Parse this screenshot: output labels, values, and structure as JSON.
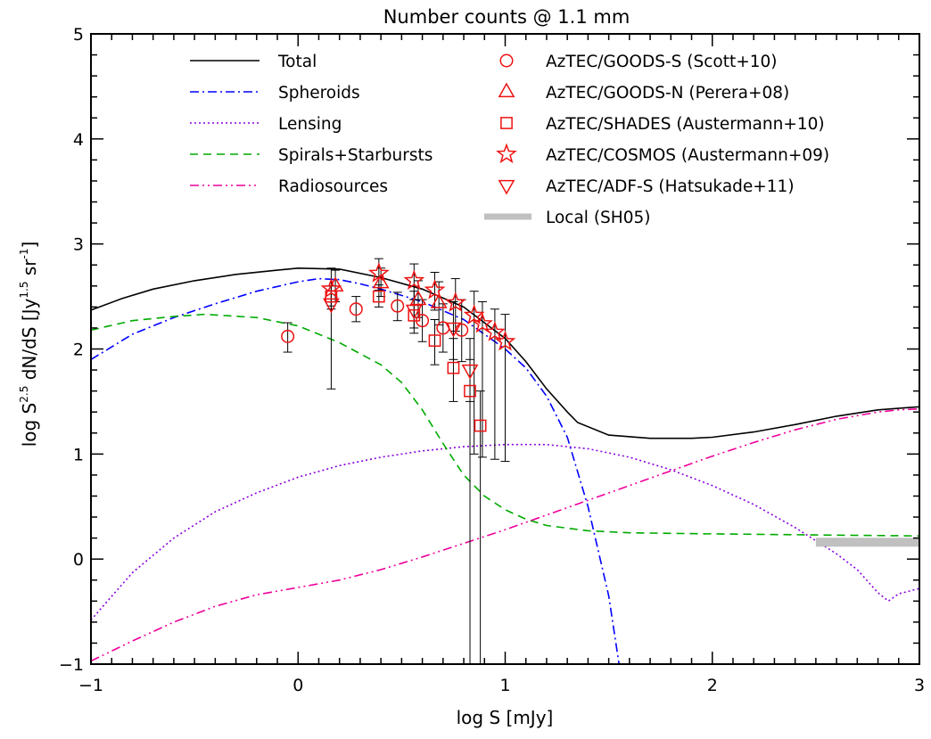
{
  "chart_data": {
    "type": "line",
    "title": "Number counts @ 1.1 mm",
    "xlabel": {
      "pre": "log S [mJy]"
    },
    "ylabel": {
      "pre": "log S",
      "sup1": "2.5",
      "mid": " dN/dS [Jy",
      "sup2": "1.5",
      "mid2": " sr",
      "sup3": "-1",
      "post": "]"
    },
    "xlim": [
      -1,
      3
    ],
    "ylim": [
      -1,
      5
    ],
    "xticks": [
      -1,
      0,
      1,
      2,
      3
    ],
    "yticks": [
      -1,
      0,
      1,
      2,
      3,
      4,
      5
    ],
    "series": [
      {
        "name": "Total",
        "color": "#000000",
        "dash": "solid",
        "x": [
          -1,
          -0.85,
          -0.7,
          -0.5,
          -0.3,
          -0.1,
          0,
          0.2,
          0.4,
          0.6,
          0.8,
          1.0,
          1.1,
          1.2,
          1.3,
          1.35,
          1.5,
          1.7,
          1.9,
          2.0,
          2.2,
          2.4,
          2.6,
          2.8,
          3.0
        ],
        "y": [
          2.37,
          2.48,
          2.57,
          2.65,
          2.71,
          2.75,
          2.77,
          2.76,
          2.68,
          2.57,
          2.4,
          2.1,
          1.88,
          1.62,
          1.4,
          1.3,
          1.18,
          1.15,
          1.15,
          1.16,
          1.21,
          1.28,
          1.36,
          1.42,
          1.45
        ]
      },
      {
        "name": "Spheroids",
        "color": "#0000ff",
        "dash": "dashdot",
        "x": [
          -1,
          -0.8,
          -0.6,
          -0.4,
          -0.2,
          0,
          0.1,
          0.2,
          0.3,
          0.4,
          0.6,
          0.8,
          1.0,
          1.1,
          1.2,
          1.3,
          1.4,
          1.5,
          1.55
        ],
        "y": [
          1.9,
          2.14,
          2.3,
          2.43,
          2.55,
          2.64,
          2.67,
          2.66,
          2.62,
          2.57,
          2.45,
          2.28,
          2.0,
          1.82,
          1.55,
          1.16,
          0.5,
          -0.35,
          -1.0
        ]
      },
      {
        "name": "Lensing",
        "color": "#8800dd",
        "dash": "dotted",
        "x": [
          -1,
          -0.8,
          -0.6,
          -0.4,
          -0.2,
          0,
          0.2,
          0.4,
          0.6,
          0.8,
          1.0,
          1.2,
          1.4,
          1.6,
          1.8,
          2.0,
          2.2,
          2.4,
          2.6,
          2.7,
          2.8,
          2.85,
          2.9,
          3.0
        ],
        "y": [
          -0.58,
          -0.13,
          0.2,
          0.45,
          0.63,
          0.78,
          0.89,
          0.97,
          1.03,
          1.07,
          1.09,
          1.09,
          1.05,
          0.97,
          0.85,
          0.7,
          0.52,
          0.3,
          0.05,
          -0.1,
          -0.32,
          -0.4,
          -0.33,
          -0.28
        ]
      },
      {
        "name": "Spirals+Starbursts",
        "color": "#00aa00",
        "dash": "dashed",
        "x": [
          -1,
          -0.8,
          -0.6,
          -0.45,
          -0.2,
          0,
          0.2,
          0.4,
          0.5,
          0.6,
          0.7,
          0.8,
          0.9,
          1.0,
          1.1,
          1.2,
          1.4,
          1.6,
          2.0,
          2.5,
          3.0
        ],
        "y": [
          2.18,
          2.27,
          2.31,
          2.33,
          2.3,
          2.22,
          2.06,
          1.85,
          1.68,
          1.42,
          1.1,
          0.8,
          0.6,
          0.47,
          0.38,
          0.32,
          0.27,
          0.25,
          0.24,
          0.23,
          0.22
        ]
      },
      {
        "name": "Radiosources",
        "color": "#ee0099",
        "dash": "dashdotdot",
        "x": [
          -1,
          -0.8,
          -0.6,
          -0.4,
          -0.2,
          0,
          0.2,
          0.4,
          0.6,
          0.8,
          1.0,
          1.2,
          1.4,
          1.6,
          1.8,
          2.0,
          2.2,
          2.4,
          2.6,
          2.8,
          2.9,
          3.0
        ],
        "y": [
          -0.97,
          -0.78,
          -0.6,
          -0.45,
          -0.34,
          -0.27,
          -0.2,
          -0.1,
          0.02,
          0.15,
          0.28,
          0.42,
          0.56,
          0.7,
          0.84,
          0.98,
          1.11,
          1.23,
          1.33,
          1.4,
          1.42,
          1.43
        ]
      },
      {
        "name": "Local (SH05)",
        "color": "#c0c0c0",
        "dash": "thick",
        "x": [
          2.5,
          3.0
        ],
        "y": [
          0.16,
          0.16
        ]
      }
    ],
    "observations": [
      {
        "name": "AzTEC/GOODS-S (Scott+10)",
        "marker": "circle",
        "points": [
          {
            "x": -0.05,
            "y": 2.12,
            "lo": 1.97,
            "hi": 2.25
          },
          {
            "x": 0.28,
            "y": 2.38,
            "lo": 2.26,
            "hi": 2.5
          },
          {
            "x": 0.48,
            "y": 2.41,
            "lo": 2.27,
            "hi": 2.54
          },
          {
            "x": 0.6,
            "y": 2.27,
            "lo": 2.07,
            "hi": 2.47
          },
          {
            "x": 0.7,
            "y": 2.2,
            "lo": 1.97,
            "hi": 2.43
          },
          {
            "x": 0.79,
            "y": 2.18,
            "lo": 1.88,
            "hi": 2.47
          }
        ]
      },
      {
        "name": "AzTEC/GOODS-N (Perera+08)",
        "marker": "triangle",
        "points": [
          {
            "x": 0.18,
            "y": 2.6,
            "lo": 2.45,
            "hi": 2.75
          },
          {
            "x": 0.4,
            "y": 2.63,
            "lo": 2.5,
            "hi": 2.77
          },
          {
            "x": 0.58,
            "y": 2.47,
            "lo": 2.3,
            "hi": 2.65
          },
          {
            "x": 0.68,
            "y": 2.44,
            "lo": 2.23,
            "hi": 2.64
          }
        ]
      },
      {
        "name": "AzTEC/SHADES (Austermann+10)",
        "marker": "square",
        "points": [
          {
            "x": 0.16,
            "y": 2.5,
            "lo": 2.41,
            "hi": 2.6
          },
          {
            "x": 0.39,
            "y": 2.5,
            "lo": 2.4,
            "hi": 2.61
          },
          {
            "x": 0.56,
            "y": 2.32,
            "lo": 2.15,
            "hi": 2.47
          },
          {
            "x": 0.66,
            "y": 2.08,
            "lo": 1.85,
            "hi": 2.28
          },
          {
            "x": 0.75,
            "y": 1.82,
            "lo": 1.5,
            "hi": 2.1
          },
          {
            "x": 0.83,
            "y": 1.6,
            "lo": -1.0,
            "hi": 1.9
          },
          {
            "x": 0.88,
            "y": 1.27,
            "lo": -1.0,
            "hi": 1.6
          }
        ]
      },
      {
        "name": "AzTEC/COSMOS (Austermann+09)",
        "marker": "star",
        "points": [
          {
            "x": 0.16,
            "y": 2.57,
            "lo": 2.38,
            "hi": 2.77
          },
          {
            "x": 0.39,
            "y": 2.72,
            "lo": 2.56,
            "hi": 2.86
          },
          {
            "x": 0.56,
            "y": 2.65,
            "lo": 2.47,
            "hi": 2.81
          },
          {
            "x": 0.66,
            "y": 2.56,
            "lo": 2.37,
            "hi": 2.73
          },
          {
            "x": 0.76,
            "y": 2.44,
            "lo": 2.17,
            "hi": 2.67
          },
          {
            "x": 0.85,
            "y": 2.32,
            "lo": 1.0,
            "hi": 2.55
          },
          {
            "x": 0.89,
            "y": 2.24,
            "lo": 0.97,
            "hi": 2.45
          },
          {
            "x": 0.95,
            "y": 2.16,
            "lo": 0.95,
            "hi": 2.38
          },
          {
            "x": 1.0,
            "y": 2.07,
            "lo": 0.93,
            "hi": 2.33
          }
        ]
      },
      {
        "name": "AzTEC/ADF-S (Hatsukade+11)",
        "marker": "triangle-down",
        "points": [
          {
            "x": 0.16,
            "y": 2.43,
            "lo": 1.62,
            "hi": 2.6
          },
          {
            "x": 0.56,
            "y": 2.37,
            "lo": 2.2,
            "hi": 2.55
          },
          {
            "x": 0.75,
            "y": 2.2,
            "lo": 1.9,
            "hi": 2.45
          },
          {
            "x": 0.83,
            "y": 1.8,
            "lo": 1.5,
            "hi": 2.1
          }
        ]
      }
    ],
    "obs_color": "#ee1111",
    "axis_color": "#000000"
  }
}
